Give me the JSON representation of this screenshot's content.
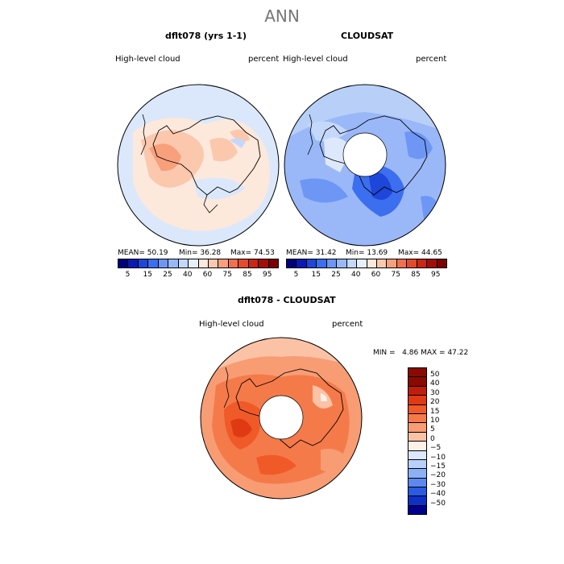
{
  "figure": {
    "title": "ANN"
  },
  "chart_data": [
    {
      "type": "heatmap",
      "title": "dflt078 (yrs 1-1)",
      "variable": "High-level cloud",
      "units": "percent",
      "projection": "south polar stereographic",
      "stats": {
        "mean_label": "MEAN=",
        "mean": "50.19",
        "min_label": "Min=",
        "min": "36.28",
        "max_label": "Max=",
        "max": "74.53"
      },
      "colorbar_ticks": [
        "5",
        "15",
        "25",
        "40",
        "60",
        "75",
        "85",
        "95"
      ]
    },
    {
      "type": "heatmap",
      "title": "CLOUDSAT",
      "variable": "High-level cloud",
      "units": "percent",
      "projection": "south polar stereographic",
      "stats": {
        "mean_label": "MEAN=",
        "mean": "31.42",
        "min_label": "Min=",
        "min": "13.69",
        "max_label": "Max=",
        "max": "44.65"
      },
      "colorbar_ticks": [
        "5",
        "15",
        "25",
        "40",
        "60",
        "75",
        "85",
        "95"
      ]
    },
    {
      "type": "heatmap",
      "title": "dflt078 - CLOUDSAT",
      "variable": "High-level cloud",
      "units": "percent",
      "projection": "south polar stereographic",
      "stats": {
        "min_label": "MIN =",
        "min": "4.86",
        "max_label": "MAX =",
        "max": "47.22"
      },
      "colorbar_ticks": [
        "50",
        "40",
        "30",
        "20",
        "15",
        "10",
        "5",
        "0",
        "-5",
        "-10",
        "-15",
        "-20",
        "-30",
        "-40",
        "-50"
      ]
    }
  ],
  "colors": {
    "abs_scale": [
      "#00007f",
      "#0a1ab0",
      "#1e46d8",
      "#3c6ef0",
      "#6e96f5",
      "#9ab8f8",
      "#c4d8fb",
      "#e6f0fd",
      "#fde8dc",
      "#fbc8ae",
      "#f8a07c",
      "#f07050",
      "#e44a2c",
      "#c82814",
      "#a40c06",
      "#7c0000"
    ],
    "diff_scale": [
      "#8a0a00",
      "#c01e0a",
      "#e03a14",
      "#f05a28",
      "#f57a4a",
      "#f89c74",
      "#fbc2a6",
      "#fff0e6",
      "#dce8fb",
      "#b8cff8",
      "#8cb0f5",
      "#5c88ef",
      "#2c5ae2",
      "#0f30c4",
      "#00008c"
    ]
  }
}
